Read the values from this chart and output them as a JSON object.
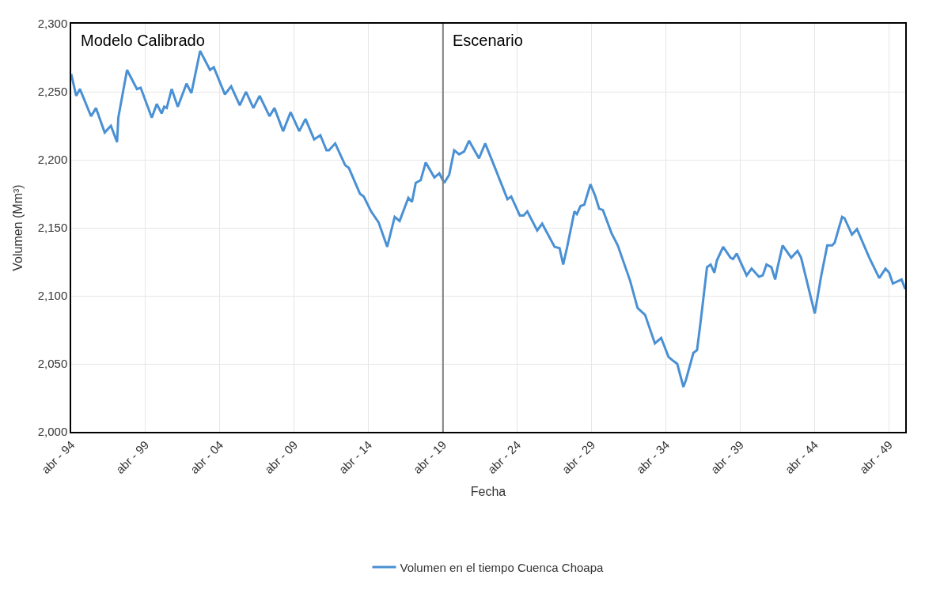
{
  "chart_data": {
    "type": "line",
    "xlabel": "Fecha",
    "ylabel": "Volumen (Mm³)",
    "annotations": [
      "Modelo Calibrado",
      "Escenario"
    ],
    "x": [
      "1994-04",
      "1994-08",
      "1994-11",
      "1995-08",
      "1995-12",
      "1996-07",
      "1996-12",
      "1997-05",
      "1997-06",
      "1998-01",
      "1998-09",
      "1998-12",
      "1999-09",
      "2000-01",
      "2000-05",
      "2000-07",
      "2000-09",
      "2001-01",
      "2001-06",
      "2002-01",
      "2002-05",
      "2002-12",
      "2003-08",
      "2003-11",
      "2004-08",
      "2005-01",
      "2005-08",
      "2006-01",
      "2006-07",
      "2006-12",
      "2007-08",
      "2007-12",
      "2008-07",
      "2009-01",
      "2009-08",
      "2010-01",
      "2010-08",
      "2011-01",
      "2011-06",
      "2011-08",
      "2012-01",
      "2012-09",
      "2012-12",
      "2013-09",
      "2013-12",
      "2014-06",
      "2014-12",
      "2015-07",
      "2016-01",
      "2016-05",
      "2016-12",
      "2017-03",
      "2017-06",
      "2017-10",
      "2018-02",
      "2018-09",
      "2019-01",
      "2019-05",
      "2019-09",
      "2020-01",
      "2020-05",
      "2020-09",
      "2021-01",
      "2021-09",
      "2022-02",
      "2022-10",
      "2023-08",
      "2023-11",
      "2024-06",
      "2024-09",
      "2024-12",
      "2025-08",
      "2025-12",
      "2026-10",
      "2027-02",
      "2027-05",
      "2027-08",
      "2028-02",
      "2028-04",
      "2028-07",
      "2028-10",
      "2029-03",
      "2029-07",
      "2029-10",
      "2030-01",
      "2030-08",
      "2031-01",
      "2031-11",
      "2032-05",
      "2032-11",
      "2033-07",
      "2033-12",
      "2034-06",
      "2034-10",
      "2035-01",
      "2035-06",
      "2035-08",
      "2036-02",
      "2036-05",
      "2036-08",
      "2037-01",
      "2037-04",
      "2037-07",
      "2037-09",
      "2038-02",
      "2038-08",
      "2038-10",
      "2039-01",
      "2039-09",
      "2040-01",
      "2040-07",
      "2040-10",
      "2041-01",
      "2041-05",
      "2041-08",
      "2041-10",
      "2042-02",
      "2042-09",
      "2043-02",
      "2043-05",
      "2044-04",
      "2044-09",
      "2045-02",
      "2045-06",
      "2045-08",
      "2046-02",
      "2046-04",
      "2046-10",
      "2047-02",
      "2047-12",
      "2048-08",
      "2049-01",
      "2049-04",
      "2049-07",
      "2050-02",
      "2050-05"
    ],
    "series": [
      {
        "name": "Volumen en el tiempo Cuenca Choapa",
        "color": "#4a90d4",
        "values": [
          2263,
          2247,
          2252,
          2232,
          2238,
          2220,
          2225,
          2213,
          2231,
          2266,
          2252,
          2253,
          2231,
          2241,
          2234,
          2239,
          2238,
          2252,
          2239,
          2256,
          2249,
          2280,
          2266,
          2268,
          2248,
          2254,
          2240,
          2250,
          2238,
          2247,
          2232,
          2238,
          2221,
          2235,
          2221,
          2230,
          2215,
          2218,
          2207,
          2207,
          2212,
          2196,
          2194,
          2175,
          2173,
          2162,
          2154,
          2136,
          2158,
          2155,
          2172,
          2169,
          2183,
          2185,
          2198,
          2187,
          2190,
          2183,
          2189,
          2207,
          2204,
          2206,
          2214,
          2201,
          2212,
          2194,
          2171,
          2173,
          2159,
          2159,
          2162,
          2148,
          2153,
          2136,
          2135,
          2123,
          2135,
          2162,
          2160,
          2166,
          2167,
          2182,
          2173,
          2164,
          2163,
          2146,
          2137,
          2111,
          2091,
          2086,
          2065,
          2069,
          2055,
          2052,
          2050,
          2033,
          2038,
          2058,
          2060,
          2082,
          2121,
          2123,
          2117,
          2126,
          2136,
          2128,
          2127,
          2131,
          2115,
          2120,
          2114,
          2115,
          2123,
          2121,
          2112,
          2121,
          2137,
          2128,
          2133,
          2128,
          2087,
          2114,
          2137,
          2137,
          2139,
          2158,
          2157,
          2145,
          2149,
          2128,
          2113,
          2120,
          2117,
          2109,
          2112,
          2105
        ]
      }
    ],
    "xlim": [
      "1994-04",
      "2050-05"
    ],
    "xticks": [
      {
        "value": "1994-04",
        "label": "abr - 94"
      },
      {
        "value": "1999-04",
        "label": "abr - 99"
      },
      {
        "value": "2004-04",
        "label": "abr - 04"
      },
      {
        "value": "2009-04",
        "label": "abr - 09"
      },
      {
        "value": "2014-04",
        "label": "abr - 14"
      },
      {
        "value": "2019-04",
        "label": "abr - 19"
      },
      {
        "value": "2024-04",
        "label": "abr - 24"
      },
      {
        "value": "2029-04",
        "label": "abr - 29"
      },
      {
        "value": "2034-04",
        "label": "abr - 34"
      },
      {
        "value": "2039-04",
        "label": "abr - 39"
      },
      {
        "value": "2044-04",
        "label": "abr - 44"
      },
      {
        "value": "2049-04",
        "label": "abr - 49"
      }
    ],
    "ylim": [
      2000,
      2300
    ],
    "yticks": [
      {
        "value": 2000,
        "label": "2,000"
      },
      {
        "value": 2050,
        "label": "2,050"
      },
      {
        "value": 2100,
        "label": "2,100"
      },
      {
        "value": 2150,
        "label": "2,150"
      },
      {
        "value": 2200,
        "label": "2,200"
      },
      {
        "value": 2250,
        "label": "2,250"
      },
      {
        "value": 2300,
        "label": "2,300"
      }
    ],
    "ref_lines": [
      {
        "axis": "x",
        "value": "2019-04",
        "color": "#808080"
      }
    ],
    "grid": true,
    "legend": "bottom",
    "marker": "none",
    "line_style": "solid"
  }
}
